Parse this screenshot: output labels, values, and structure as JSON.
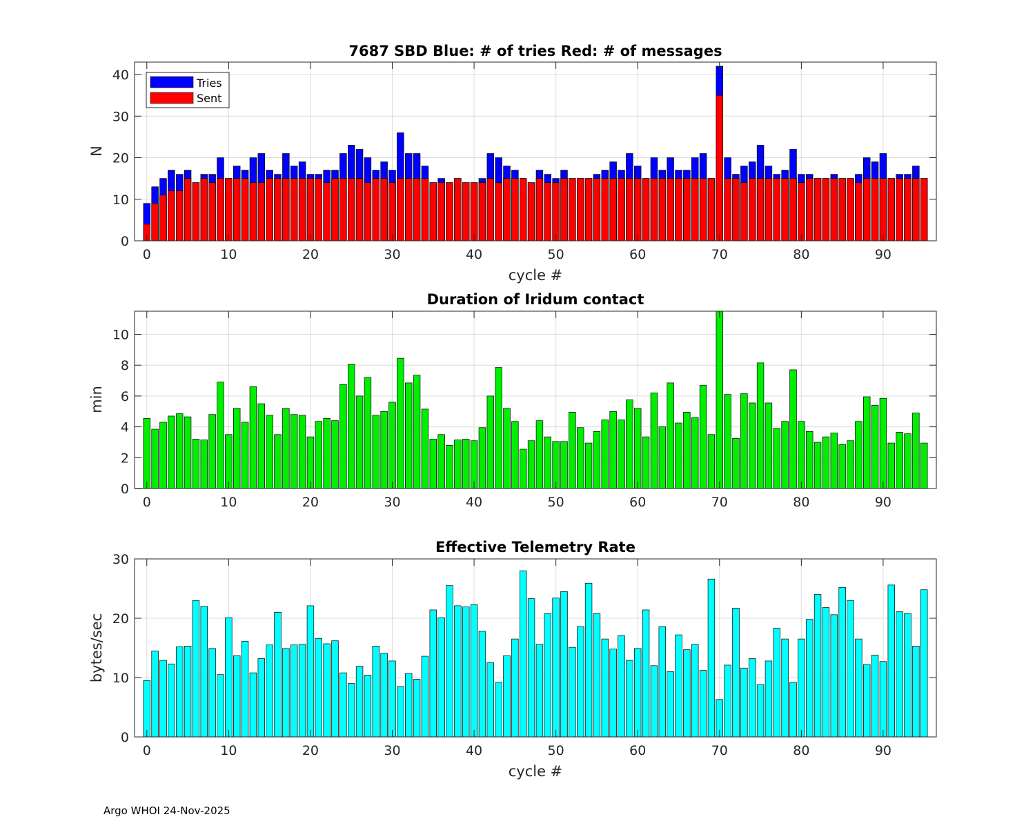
{
  "footer": "Argo WHOI 24-Nov-2025",
  "colors": {
    "tries": "#0000ff",
    "sent": "#ff0000",
    "duration": "#00ee00",
    "rate": "#00ffff",
    "grid": "#dcdcdc"
  },
  "chart_data": [
    {
      "type": "bar",
      "title": "7687 SBD  Blue: # of tries   Red: # of messages",
      "xlabel": "cycle #",
      "ylabel": "N",
      "xlim": [
        -1.5,
        96.5
      ],
      "ylim": [
        0,
        43
      ],
      "xticks": [
        0,
        10,
        20,
        30,
        40,
        50,
        60,
        70,
        80,
        90
      ],
      "yticks": [
        0,
        10,
        20,
        30,
        40
      ],
      "legend": {
        "position": "top-left",
        "entries": [
          "Tries",
          "Sent"
        ]
      },
      "x_start": 0,
      "series": [
        {
          "name": "Tries",
          "values": [
            9,
            13,
            15,
            17,
            16,
            17,
            14,
            16,
            16,
            20,
            15,
            18,
            17,
            20,
            21,
            17,
            16,
            21,
            18,
            19,
            16,
            16,
            17,
            17,
            21,
            23,
            22,
            20,
            17,
            19,
            17,
            26,
            21,
            21,
            18,
            14,
            15,
            14,
            15,
            14,
            14,
            15,
            21,
            20,
            18,
            17,
            15,
            14,
            17,
            16,
            15,
            17,
            15,
            15,
            15,
            16,
            17,
            19,
            17,
            21,
            18,
            15,
            20,
            17,
            20,
            17,
            17,
            20,
            21,
            15,
            42,
            20,
            16,
            18,
            19,
            23,
            18,
            16,
            17,
            22,
            16,
            16,
            15,
            15,
            16,
            15,
            15,
            16,
            20,
            19,
            21,
            15,
            16,
            16,
            18,
            15
          ]
        },
        {
          "name": "Sent",
          "values": [
            4,
            9,
            11,
            12,
            12,
            15,
            14,
            15,
            14,
            15,
            15,
            15,
            15,
            14,
            14,
            15,
            15,
            15,
            15,
            15,
            15,
            15,
            14,
            15,
            15,
            15,
            15,
            14,
            15,
            15,
            14,
            15,
            15,
            15,
            15,
            14,
            14,
            14,
            15,
            14,
            14,
            14,
            15,
            14,
            15,
            15,
            15,
            14,
            15,
            14,
            14,
            15,
            15,
            15,
            15,
            15,
            15,
            15,
            15,
            15,
            15,
            15,
            15,
            15,
            15,
            15,
            15,
            15,
            15,
            15,
            35,
            15,
            15,
            14,
            15,
            15,
            15,
            15,
            15,
            15,
            14,
            15,
            15,
            15,
            15,
            15,
            15,
            14,
            15,
            15,
            15,
            15,
            15,
            15,
            15,
            15
          ]
        }
      ]
    },
    {
      "type": "bar",
      "title": "Duration of Iridum contact",
      "xlabel": "",
      "ylabel": "min",
      "xlim": [
        -1.5,
        96.5
      ],
      "ylim": [
        0,
        11.5
      ],
      "xticks": [
        0,
        10,
        20,
        30,
        40,
        50,
        60,
        70,
        80,
        90
      ],
      "yticks": [
        0,
        2,
        4,
        6,
        8,
        10
      ],
      "x_start": -1,
      "values": [
        0.02,
        4.55,
        3.85,
        4.3,
        4.7,
        4.85,
        4.65,
        3.2,
        3.15,
        4.8,
        6.9,
        3.5,
        5.2,
        4.3,
        6.6,
        5.5,
        4.75,
        3.5,
        5.2,
        4.8,
        4.75,
        3.35,
        4.35,
        4.55,
        4.4,
        6.75,
        8.05,
        6.0,
        7.2,
        4.75,
        5.0,
        5.6,
        8.45,
        6.85,
        7.35,
        5.15,
        3.2,
        3.5,
        2.8,
        3.15,
        3.2,
        3.1,
        3.95,
        6.0,
        7.85,
        5.2,
        4.35,
        2.55,
        3.1,
        4.4,
        3.35,
        3.05,
        3.05,
        4.95,
        3.95,
        2.95,
        3.7,
        4.45,
        5.0,
        4.45,
        5.75,
        5.2,
        3.35,
        6.2,
        4.0,
        6.85,
        4.25,
        4.95,
        4.6,
        6.7,
        3.5,
        11.5,
        6.1,
        3.25,
        6.15,
        5.55,
        8.15,
        5.55,
        3.9,
        4.35,
        7.7,
        4.35,
        3.7,
        3.0,
        3.35,
        3.6,
        2.85,
        3.1,
        4.35,
        5.95,
        5.4,
        5.85,
        2.95,
        3.65,
        3.55,
        4.9,
        2.95
      ]
    },
    {
      "type": "bar",
      "title": "Effective Telemetry Rate",
      "xlabel": "cycle #",
      "ylabel": "bytes/sec",
      "xlim": [
        -1.5,
        96.5
      ],
      "ylim": [
        0,
        30
      ],
      "xticks": [
        0,
        10,
        20,
        30,
        40,
        50,
        60,
        70,
        80,
        90
      ],
      "yticks": [
        0,
        10,
        20,
        30
      ],
      "x_start": 0,
      "values": [
        9.5,
        14.5,
        12.9,
        12.3,
        15.2,
        15.3,
        23.0,
        22.0,
        14.9,
        10.5,
        20.1,
        13.7,
        16.1,
        10.8,
        13.2,
        15.5,
        21.0,
        14.9,
        15.5,
        15.6,
        22.1,
        16.6,
        15.7,
        16.2,
        10.8,
        9.0,
        11.9,
        10.4,
        15.3,
        14.1,
        12.8,
        8.5,
        10.7,
        9.7,
        13.6,
        21.4,
        20.1,
        25.5,
        22.1,
        21.9,
        22.3,
        17.8,
        12.5,
        9.2,
        13.7,
        16.5,
        28.0,
        23.3,
        15.6,
        20.8,
        23.4,
        24.5,
        15.1,
        18.6,
        25.9,
        20.8,
        16.5,
        14.8,
        17.1,
        12.9,
        14.9,
        21.4,
        12.0,
        18.6,
        11.0,
        17.2,
        14.7,
        15.6,
        11.2,
        26.6,
        6.3,
        12.1,
        21.7,
        11.6,
        13.2,
        8.8,
        12.8,
        18.3,
        16.5,
        9.2,
        16.5,
        19.8,
        24.0,
        21.8,
        20.6,
        25.2,
        23.0,
        16.5,
        12.2,
        13.8,
        12.7,
        25.6,
        21.1,
        20.8,
        15.3,
        24.8
      ]
    }
  ]
}
